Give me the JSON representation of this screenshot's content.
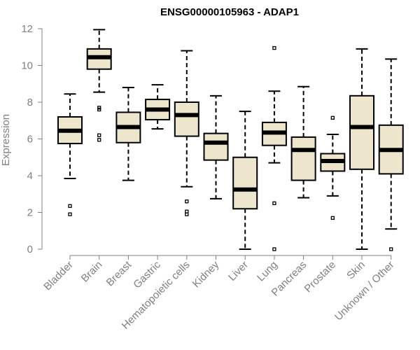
{
  "chart_data": {
    "type": "boxplot",
    "title": "ENSG00000105963 - ADAP1",
    "xlabel": "",
    "ylabel": "Expression",
    "ylim": [
      0,
      12
    ],
    "yticks": [
      0,
      2,
      4,
      6,
      8,
      10,
      12
    ],
    "grid": false,
    "colors": {
      "box_fill": "#ede6cd",
      "box_stroke": "#000000",
      "median": "#000000",
      "axis": "#808080",
      "tick_text": "#808080"
    },
    "categories": [
      "Bladder",
      "Brain",
      "Breast",
      "Gastric",
      "Hematopoietic cells",
      "Kidney",
      "Liver",
      "Lung",
      "Pancreas",
      "Prostate",
      "Skin",
      "Unknown / Other"
    ],
    "boxes": [
      {
        "category": "Bladder",
        "whisker_low": 3.85,
        "q1": 5.75,
        "median": 6.45,
        "q3": 7.2,
        "whisker_high": 8.45,
        "outliers": [
          2.35,
          1.9
        ]
      },
      {
        "category": "Brain",
        "whisker_low": 8.55,
        "q1": 9.8,
        "median": 10.45,
        "q3": 10.9,
        "whisker_high": 11.95,
        "outliers": [
          7.7,
          7.6,
          6.2,
          5.95
        ]
      },
      {
        "category": "Breast",
        "whisker_low": 3.75,
        "q1": 5.8,
        "median": 6.65,
        "q3": 7.45,
        "whisker_high": 8.8,
        "outliers": []
      },
      {
        "category": "Gastric",
        "whisker_low": 6.55,
        "q1": 7.05,
        "median": 7.6,
        "q3": 8.15,
        "whisker_high": 8.95,
        "outliers": []
      },
      {
        "category": "Hematopoietic cells",
        "whisker_low": 3.4,
        "q1": 6.15,
        "median": 7.3,
        "q3": 8.0,
        "whisker_high": 10.8,
        "outliers": [
          2.6,
          2.05,
          1.9
        ]
      },
      {
        "category": "Kidney",
        "whisker_low": 2.75,
        "q1": 4.85,
        "median": 5.8,
        "q3": 6.3,
        "whisker_high": 8.35,
        "outliers": []
      },
      {
        "category": "Liver",
        "whisker_low": 0.0,
        "q1": 2.2,
        "median": 3.25,
        "q3": 5.0,
        "whisker_high": 7.5,
        "outliers": []
      },
      {
        "category": "Lung",
        "whisker_low": 4.7,
        "q1": 5.65,
        "median": 6.35,
        "q3": 6.9,
        "whisker_high": 8.6,
        "outliers": [
          10.95,
          2.5,
          0.0
        ]
      },
      {
        "category": "Pancreas",
        "whisker_low": 2.8,
        "q1": 3.75,
        "median": 5.4,
        "q3": 6.1,
        "whisker_high": 8.85,
        "outliers": []
      },
      {
        "category": "Prostate",
        "whisker_low": 2.9,
        "q1": 4.25,
        "median": 4.8,
        "q3": 5.2,
        "whisker_high": 6.25,
        "outliers": [
          7.15,
          1.7
        ]
      },
      {
        "category": "Skin",
        "whisker_low": 0.0,
        "q1": 4.35,
        "median": 6.65,
        "q3": 8.35,
        "whisker_high": 10.9,
        "outliers": []
      },
      {
        "category": "Unknown / Other",
        "whisker_low": 1.1,
        "q1": 4.1,
        "median": 5.4,
        "q3": 6.75,
        "whisker_high": 10.35,
        "outliers": [
          0.0
        ]
      }
    ]
  }
}
